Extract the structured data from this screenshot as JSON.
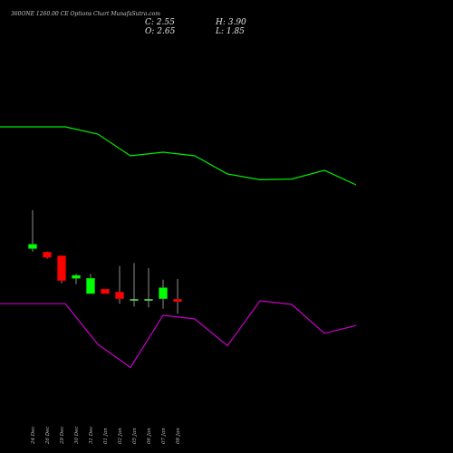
{
  "header": {
    "title": "360ONE 1260.00 CE Options Chart MunafaSutra.com",
    "open": "O: 2.65",
    "close": "C: 2.55",
    "high": "H: 3.90",
    "low": "L: 1.85"
  },
  "colors": {
    "background": "#000000",
    "up": "#00ff00",
    "down": "#ff0000",
    "line_green": "#00ee00",
    "line_magenta": "#c800c8",
    "wick": "#cfcfcf"
  },
  "chart_data": {
    "type": "candlestick",
    "x": [
      "24 Dec",
      "26 Dec",
      "29 Dec",
      "30 Dec",
      "31 Dec",
      "01 Jan",
      "02 Jan",
      "05 Jan",
      "06 Jan",
      "07 Jan",
      "08 Jan"
    ],
    "series": [
      {
        "values": [
          {
            "open": 62.0,
            "high": 115.0,
            "low": 58.0,
            "close": 68.0
          },
          {
            "open": 57.0,
            "high": 58.0,
            "low": 48.0,
            "close": 50.0
          },
          {
            "open": 52.0,
            "high": 52.0,
            "low": 14.0,
            "close": 18.0
          },
          {
            "open": 21.0,
            "high": 27.0,
            "low": 13.0,
            "close": 25.0
          },
          {
            "open": 0.0,
            "high": 27.0,
            "low": 0.0,
            "close": 21.0
          },
          {
            "open": 6.0,
            "high": 6.0,
            "low": 0.0,
            "close": 0.0
          },
          {
            "open": 2.0,
            "high": 38.0,
            "low": -14.0,
            "close": -7.0
          },
          {
            "open": -8.0,
            "high": 42.0,
            "low": -18.0,
            "close": -8.0
          },
          {
            "open": -8.0,
            "high": 35.0,
            "low": -19.0,
            "close": -8.0
          },
          {
            "open": -7.0,
            "high": 19.0,
            "low": -21.0,
            "close": 8.0
          },
          {
            "open": -8.0,
            "high": 20.0,
            "low": -28.0,
            "close": -11.0
          }
        ]
      }
    ],
    "lines": [
      {
        "color": "#00ee00",
        "values": [
          230,
          230,
          220,
          190,
          195,
          190,
          165,
          157,
          158,
          170,
          150
        ]
      },
      {
        "color": "#c800c8",
        "values": [
          -14,
          -14,
          -70,
          -102,
          -30,
          -35,
          -72,
          -10,
          -15,
          -55,
          -44
        ]
      }
    ],
    "line_y_range": [
      -120,
      280
    ],
    "ylim": [
      -120,
      280
    ]
  }
}
